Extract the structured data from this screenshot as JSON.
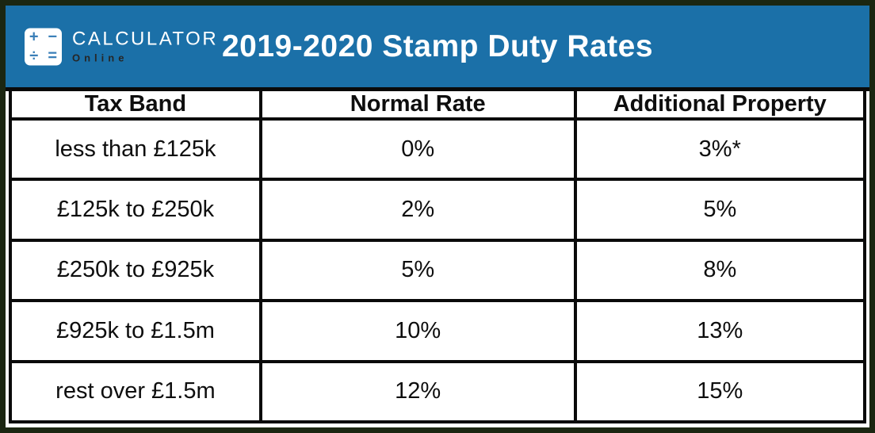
{
  "header": {
    "title": "2019-2020 Stamp Duty Rates",
    "logo": {
      "brand_top": "CALCULATOR",
      "brand_bottom": "Online",
      "symbols": {
        "plus": "+",
        "minus": "−",
        "divide": "÷",
        "equals": "="
      }
    }
  },
  "table": {
    "columns": [
      "Tax Band",
      "Normal Rate",
      "Additional Property"
    ],
    "rows": [
      [
        "less than £125k",
        "0%",
        "3%*"
      ],
      [
        "£125k to £250k",
        "2%",
        "5%"
      ],
      [
        "£250k to £925k",
        "5%",
        "8%"
      ],
      [
        "£925k to £1.5m",
        "10%",
        "13%"
      ],
      [
        "rest over £1.5m",
        "12%",
        "15%"
      ]
    ]
  },
  "colors": {
    "header_bg": "#1b70a8",
    "frame_border": "#1b2611",
    "cell_border": "#0a0a0a",
    "title_text": "#ffffff",
    "logo_symbol": "#3a7fb8",
    "brand_bottom_text": "#262626"
  }
}
